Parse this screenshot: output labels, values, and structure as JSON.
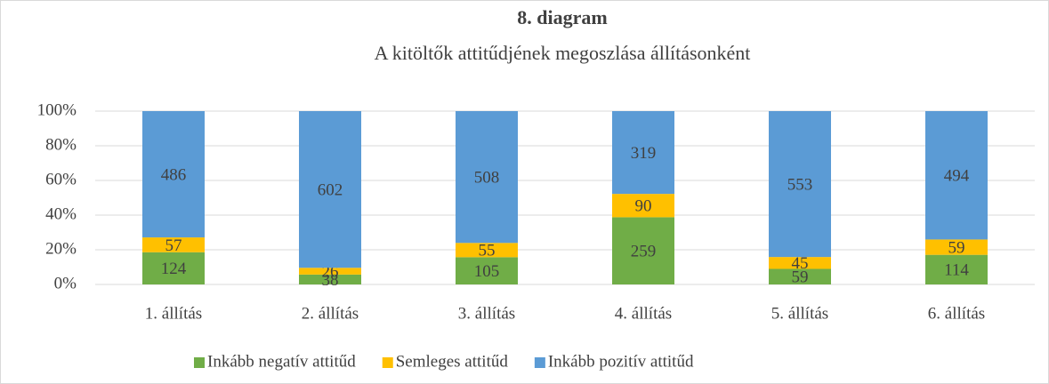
{
  "chart_data": {
    "type": "bar",
    "stacking": "percent",
    "title": "8. diagram",
    "subtitle": "A kitöltők attitűdjének megoszlása állításonként",
    "categories": [
      "1. állítás",
      "2. állítás",
      "3. állítás",
      "4. állítás",
      "5. állítás",
      "6. állítás"
    ],
    "series": [
      {
        "name": "Inkább negatív attitűd",
        "color": "#70ad47",
        "values": [
          124,
          38,
          105,
          259,
          59,
          114
        ]
      },
      {
        "name": "Semleges attitűd",
        "color": "#ffc000",
        "values": [
          57,
          26,
          55,
          90,
          45,
          59
        ]
      },
      {
        "name": "Inkább pozitív attitűd",
        "color": "#5b9bd5",
        "values": [
          486,
          602,
          508,
          319,
          553,
          494
        ]
      }
    ],
    "ylim": [
      0,
      100
    ],
    "yticks": [
      {
        "value": 0,
        "label": "0%"
      },
      {
        "value": 20,
        "label": "20%"
      },
      {
        "value": 40,
        "label": "40%"
      },
      {
        "value": 60,
        "label": "60%"
      },
      {
        "value": 80,
        "label": "80%"
      },
      {
        "value": 100,
        "label": "100%"
      }
    ],
    "grid": true,
    "legend": "bottom"
  }
}
